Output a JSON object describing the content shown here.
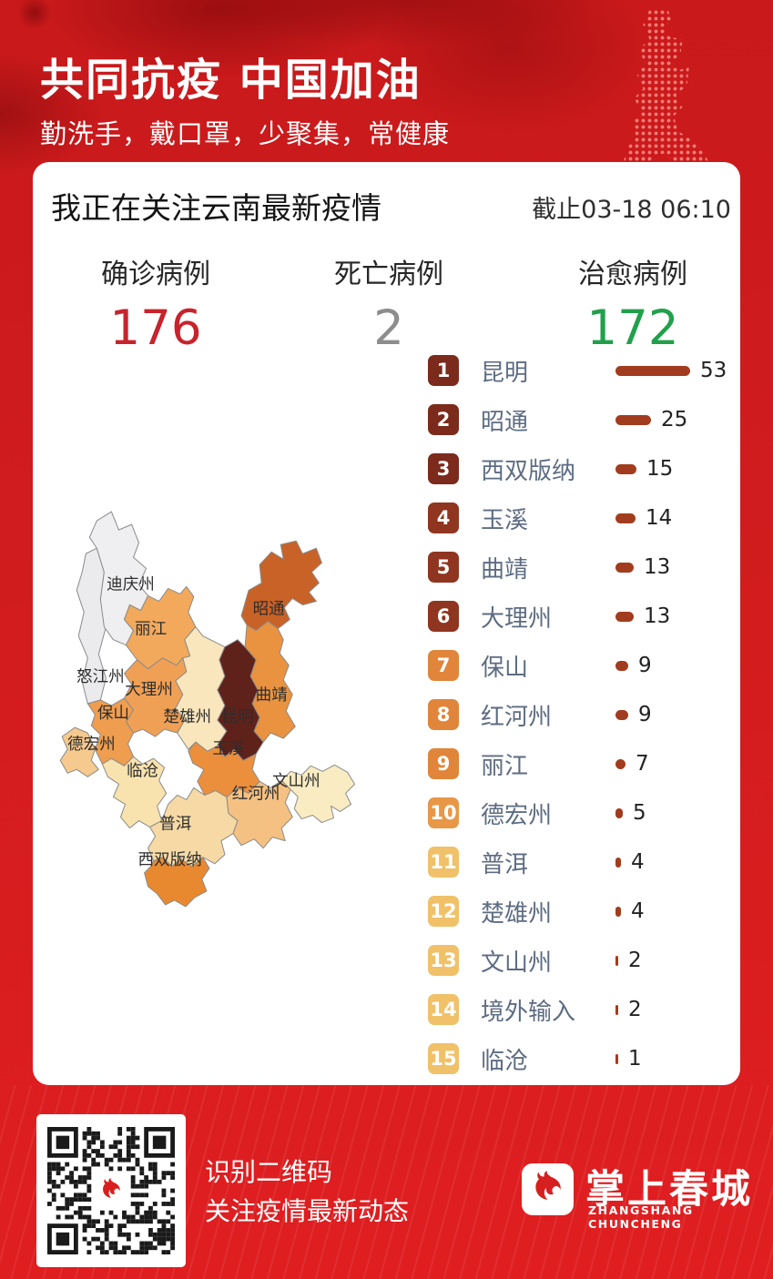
{
  "header": {
    "title": "共同抗疫 中国加油",
    "subtitle": "勤洗手，戴口罩，少聚集，常健康"
  },
  "report": {
    "title": "我正在关注云南最新疫情",
    "as_of": "截止03-18 06:10",
    "stats": [
      {
        "label": "确诊病例",
        "value": "176",
        "color": "#c8232c"
      },
      {
        "label": "死亡病例",
        "value": "2",
        "color": "#8d8d8d"
      },
      {
        "label": "治愈病例",
        "value": "172",
        "color": "#21a04c"
      }
    ],
    "bar_color": "#a23c1e",
    "ranking": [
      {
        "rank": 1,
        "name": "昆明",
        "value": 53,
        "badge_color": "#7b2a1b"
      },
      {
        "rank": 2,
        "name": "昭通",
        "value": 25,
        "badge_color": "#7b2a1b"
      },
      {
        "rank": 3,
        "name": "西双版纳",
        "value": 15,
        "badge_color": "#7b2a1b"
      },
      {
        "rank": 4,
        "name": "玉溪",
        "value": 14,
        "badge_color": "#8f3520"
      },
      {
        "rank": 5,
        "name": "曲靖",
        "value": 13,
        "badge_color": "#8f3520"
      },
      {
        "rank": 6,
        "name": "大理州",
        "value": 13,
        "badge_color": "#8f3520"
      },
      {
        "rank": 7,
        "name": "保山",
        "value": 9,
        "badge_color": "#e0853a"
      },
      {
        "rank": 8,
        "name": "红河州",
        "value": 9,
        "badge_color": "#e0853a"
      },
      {
        "rank": 9,
        "name": "丽江",
        "value": 7,
        "badge_color": "#e0853a"
      },
      {
        "rank": 10,
        "name": "德宏州",
        "value": 5,
        "badge_color": "#e89747"
      },
      {
        "rank": 11,
        "name": "普洱",
        "value": 4,
        "badge_color": "#f0c169"
      },
      {
        "rank": 12,
        "name": "楚雄州",
        "value": 4,
        "badge_color": "#f0c169"
      },
      {
        "rank": 13,
        "name": "文山州",
        "value": 2,
        "badge_color": "#f0c169"
      },
      {
        "rank": 14,
        "name": "境外输入",
        "value": 2,
        "badge_color": "#f0c169"
      },
      {
        "rank": 15,
        "name": "临沧",
        "value": 1,
        "badge_color": "#f0c169"
      }
    ]
  },
  "map": {
    "regions": [
      {
        "key": "nujiang",
        "name": "怒江州",
        "fill": "#ebeaec"
      },
      {
        "key": "diqing",
        "name": "迪庆州",
        "fill": "#efeef0"
      },
      {
        "key": "zhaotong",
        "name": "昭通",
        "fill": "#c96227"
      },
      {
        "key": "lijiang",
        "name": "丽江",
        "fill": "#f2a95c"
      },
      {
        "key": "qujing",
        "name": "曲靖",
        "fill": "#e9923f"
      },
      {
        "key": "chuxiong",
        "name": "楚雄州",
        "fill": "#f9e6bd"
      },
      {
        "key": "kunming",
        "name": "昆明",
        "fill": "#5f221a"
      },
      {
        "key": "dali",
        "name": "大理州",
        "fill": "#f0a055"
      },
      {
        "key": "baoshan",
        "name": "保山",
        "fill": "#ef9d4e"
      },
      {
        "key": "dehong",
        "name": "德宏州",
        "fill": "#f6c98e"
      },
      {
        "key": "lincang",
        "name": "临沧",
        "fill": "#f8e2ae"
      },
      {
        "key": "puer",
        "name": "普洱",
        "fill": "#f6d9a4"
      },
      {
        "key": "xishuangbanna",
        "name": "西双版纳",
        "fill": "#e9892f"
      },
      {
        "key": "yuxi",
        "name": "玉溪",
        "fill": "#ec8f3c"
      },
      {
        "key": "honghe",
        "name": "红河州",
        "fill": "#f4c182"
      },
      {
        "key": "wenshan",
        "name": "文山州",
        "fill": "#f9ecc3"
      }
    ]
  },
  "footer": {
    "caption_line1": "识别二维码",
    "caption_line2": "关注疫情最新动态",
    "brand_name": "掌上春城",
    "brand_sub": "ZHANGSHANG CHUNCHENG"
  },
  "chart_data": {
    "type": "bar",
    "orientation": "horizontal",
    "title": "我正在关注云南最新疫情",
    "as_of": "截止03-18 06:10",
    "summary": [
      {
        "label": "确诊病例",
        "value": 176
      },
      {
        "label": "死亡病例",
        "value": 2
      },
      {
        "label": "治愈病例",
        "value": 172
      }
    ],
    "categories": [
      "昆明",
      "昭通",
      "西双版纳",
      "玉溪",
      "曲靖",
      "大理州",
      "保山",
      "红河州",
      "丽江",
      "德宏州",
      "普洱",
      "楚雄州",
      "文山州",
      "境外输入",
      "临沧"
    ],
    "values": [
      53,
      25,
      15,
      14,
      13,
      13,
      9,
      9,
      7,
      5,
      4,
      4,
      2,
      2,
      1
    ],
    "xlim": [
      0,
      53
    ],
    "legend_position": "none",
    "companion_visual": "choropleth map of Yunnan prefectures (昆明 darkest, 迪庆州/怒江州 gray = no cases)"
  }
}
